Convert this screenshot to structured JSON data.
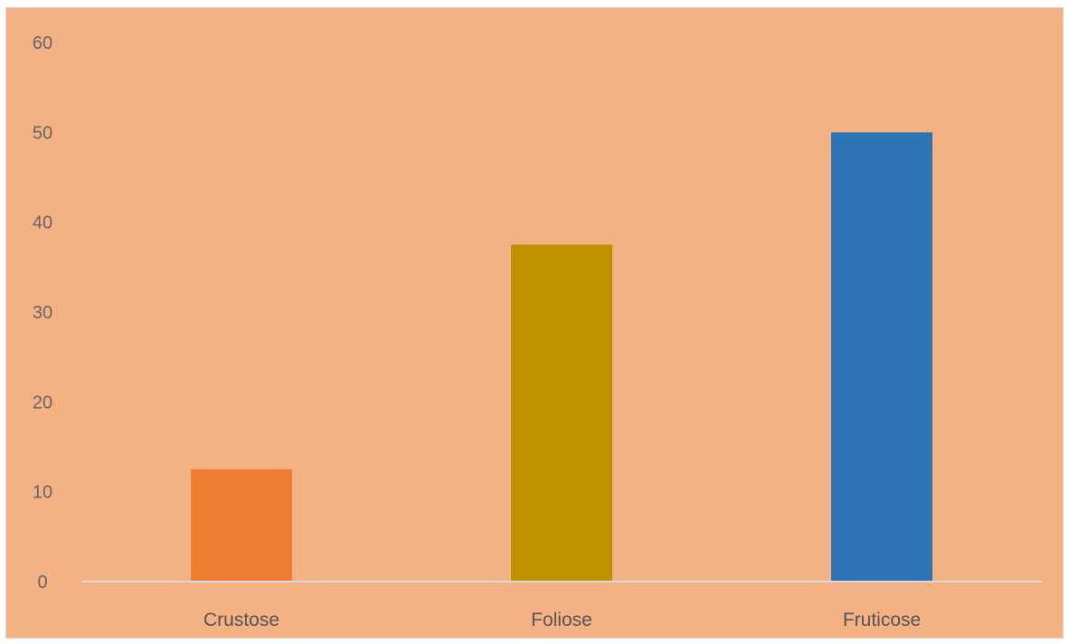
{
  "chart_data": {
    "type": "bar",
    "title": "",
    "xlabel": "",
    "ylabel": "",
    "categories": [
      "Crustose",
      "Foliose",
      "Fruticose"
    ],
    "values": [
      12.5,
      37.5,
      50
    ],
    "bar_colors": [
      "#ed7d31",
      "#bf9000",
      "#2e75b6"
    ],
    "background_color": "#f4b183",
    "ylim": [
      0,
      60
    ],
    "yticks": [
      0,
      10,
      20,
      30,
      40,
      50,
      60
    ],
    "grid": false,
    "legend": "none"
  }
}
